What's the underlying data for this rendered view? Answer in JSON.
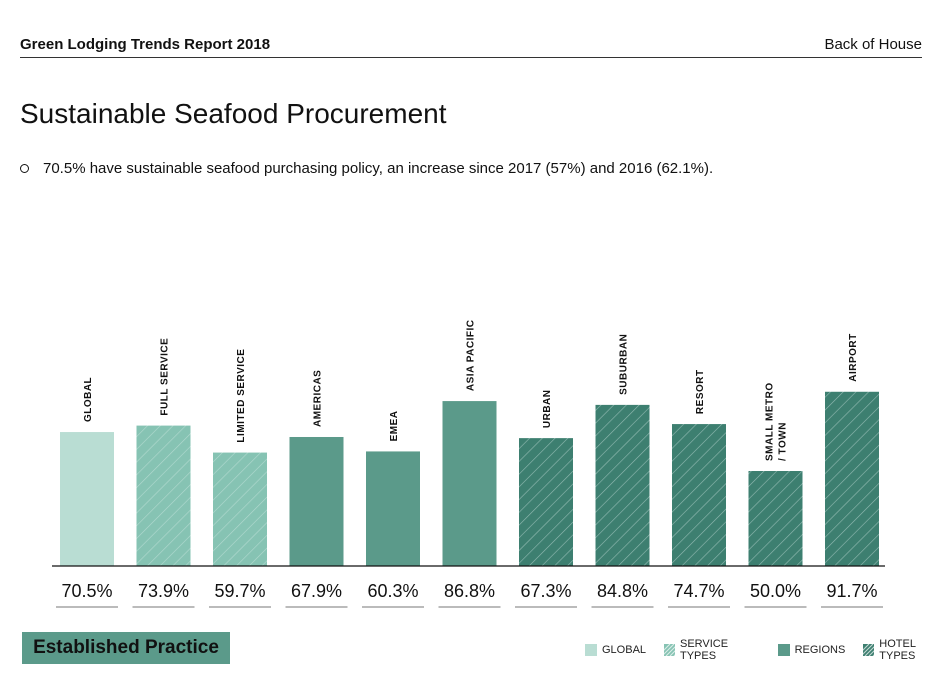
{
  "header": {
    "report_title": "Green Lodging Trends Report 2018",
    "section": "Back of House"
  },
  "page_title": "Sustainable Seafood Procurement",
  "bullet_text": "70.5% have sustainable seafood purchasing policy, an increase since 2017 (57%) and 2016 (62.1%).",
  "badge_label": "Established Practice",
  "colors": {
    "global": "#b9ddd3",
    "service": "#86c3b3",
    "region": "#5b9a8a",
    "hotel": "#3d7f70",
    "hatch": "#d8ece6"
  },
  "legend": [
    {
      "key": "global",
      "label": "GLOBAL",
      "pattern": "solid"
    },
    {
      "key": "service",
      "label": "SERVICE TYPES",
      "pattern": "hatch"
    },
    {
      "key": "region",
      "label": "REGIONS",
      "pattern": "solid"
    },
    {
      "key": "hotel",
      "label": "HOTEL TYPES",
      "pattern": "hatch"
    }
  ],
  "chart_data": {
    "type": "bar",
    "categories": [
      "GLOBAL",
      "FULL SERVICE",
      "LIMITED SERVICE",
      "AMERICAS",
      "EMEA",
      "ASIA PACIFIC",
      "URBAN",
      "SUBURBAN",
      "RESORT",
      "SMALL METRO / TOWN",
      "AIRPORT"
    ],
    "category_lines": [
      [
        "GLOBAL"
      ],
      [
        "FULL SERVICE"
      ],
      [
        "LIMITED SERVICE"
      ],
      [
        "AMERICAS"
      ],
      [
        "EMEA"
      ],
      [
        "ASIA PACIFIC"
      ],
      [
        "URBAN"
      ],
      [
        "SUBURBAN"
      ],
      [
        "RESORT"
      ],
      [
        "SMALL METRO",
        "/ TOWN"
      ],
      [
        "AIRPORT"
      ]
    ],
    "values": [
      70.5,
      73.9,
      59.7,
      67.9,
      60.3,
      86.8,
      67.3,
      84.8,
      74.7,
      50.0,
      91.7
    ],
    "value_labels": [
      "70.5%",
      "73.9%",
      "59.7%",
      "67.9%",
      "60.3%",
      "86.8%",
      "67.3%",
      "84.8%",
      "74.7%",
      "50.0%",
      "91.7%"
    ],
    "groups": [
      "global",
      "service",
      "service",
      "region",
      "region",
      "region",
      "hotel",
      "hotel",
      "hotel",
      "hotel",
      "hotel"
    ],
    "ylim": [
      0,
      100
    ],
    "grid": false,
    "legend_position": "bottom-right"
  }
}
